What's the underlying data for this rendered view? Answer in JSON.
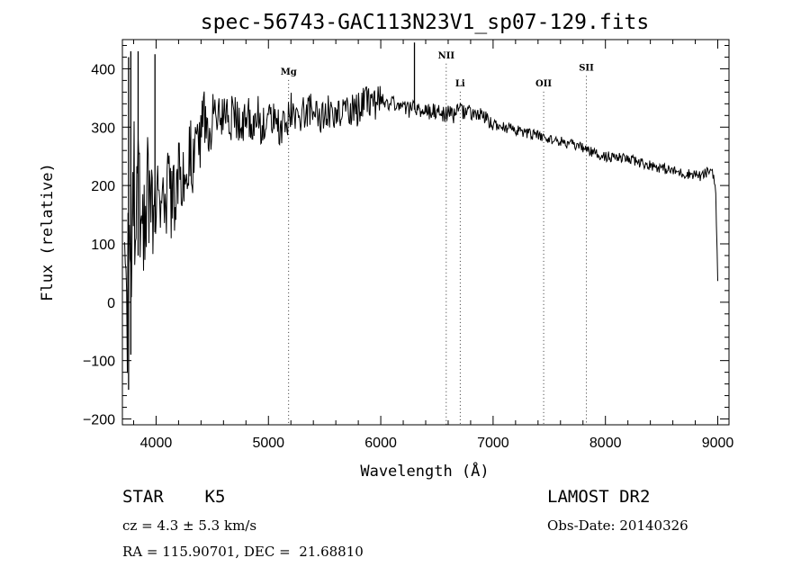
{
  "chart_data": {
    "type": "line",
    "title": "spec-56743-GAC113N23V1_sp07-129.fits",
    "xlabel": "Wavelength (Å)",
    "ylabel": "Flux (relative)",
    "xlim": [
      3700,
      9100
    ],
    "ylim": [
      -210,
      450
    ],
    "xticks": [
      4000,
      5000,
      6000,
      7000,
      8000,
      9000
    ],
    "yticks": [
      -200,
      -100,
      0,
      100,
      200,
      300,
      400
    ],
    "series": [
      {
        "x": [
          3720,
          3740,
          3760,
          3780,
          3800,
          3820,
          3840,
          3860,
          3880,
          3900,
          3920,
          3940,
          3960,
          3980,
          4000,
          4050,
          4100,
          4150,
          4200,
          4250,
          4300,
          4350,
          4400,
          4450,
          4500,
          4550,
          4600,
          4650,
          4700,
          4750,
          4800,
          4850,
          4900,
          4950,
          5000,
          5050,
          5100,
          5150,
          5200,
          5250,
          5300,
          5350,
          5400,
          5450,
          5500,
          5550,
          5600,
          5650,
          5700,
          5750,
          5800,
          5850,
          5900,
          5950,
          6000,
          6050,
          6100,
          6150,
          6200,
          6250,
          6300,
          6350,
          6400,
          6450,
          6500,
          6550,
          6600,
          6650,
          6700,
          6750,
          6800,
          6850,
          6900,
          6950,
          7000,
          7100,
          7200,
          7300,
          7400,
          7500,
          7600,
          7700,
          7800,
          7900,
          8000,
          8100,
          8200,
          8300,
          8400,
          8500,
          8600,
          8700,
          8800,
          8850,
          8900,
          8950,
          8980,
          9000
        ],
        "y": [
          180,
          -60,
          230,
          120,
          210,
          60,
          240,
          100,
          250,
          70,
          190,
          120,
          220,
          140,
          180,
          160,
          190,
          170,
          240,
          220,
          260,
          250,
          280,
          300,
          320,
          310,
          335,
          300,
          330,
          290,
          320,
          310,
          320,
          300,
          330,
          310,
          300,
          300,
          330,
          320,
          320,
          330,
          330,
          320,
          320,
          330,
          320,
          330,
          340,
          330,
          330,
          340,
          340,
          335,
          345,
          340,
          340,
          335,
          340,
          330,
          335,
          330,
          330,
          325,
          330,
          320,
          325,
          320,
          330,
          325,
          325,
          320,
          320,
          310,
          305,
          300,
          295,
          290,
          285,
          280,
          275,
          270,
          265,
          255,
          250,
          248,
          245,
          240,
          235,
          230,
          225,
          220,
          220,
          215,
          222,
          228,
          200,
          30
        ]
      }
    ],
    "spikes": [
      {
        "x": 3755,
        "y1": -150,
        "y2": 420
      },
      {
        "x": 3775,
        "y1": -90,
        "y2": 430
      },
      {
        "x": 3840,
        "y1": 80,
        "y2": 430
      },
      {
        "x": 3990,
        "y1": 120,
        "y2": 425
      },
      {
        "x": 6300,
        "y1": 330,
        "y2": 445
      }
    ],
    "spectral_lines": [
      {
        "label": "Mg",
        "x": 5180,
        "label_y": 390
      },
      {
        "label": "NII",
        "x": 6583,
        "label_y": 418
      },
      {
        "label": "Li",
        "x": 6707,
        "label_y": 370
      },
      {
        "label": "OII",
        "x": 7450,
        "label_y": 370
      },
      {
        "label": "SII",
        "x": 7830,
        "label_y": 397
      }
    ]
  },
  "info": {
    "object": "STAR    K5",
    "survey": "LAMOST DR2",
    "cz": "cz = 4.3 ± 5.3 km/s",
    "obsdate": "Obs-Date: 20140326",
    "coords": "RA = 115.90701, DEC =  21.68810"
  }
}
